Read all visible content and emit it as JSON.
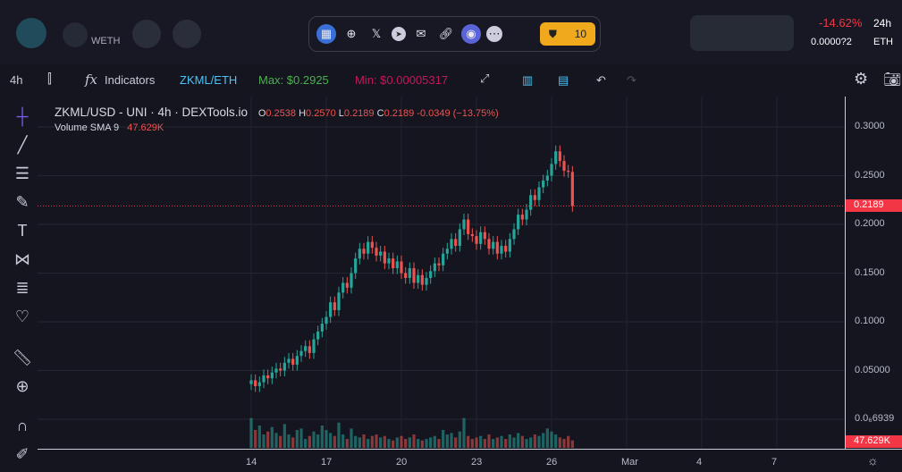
{
  "header": {
    "quote_label": "WETH",
    "change": "-14.62%",
    "change_period": "24h",
    "eth_price": "0.0000?2",
    "eth_unit": "ETH",
    "audit_count": "10"
  },
  "social_icons": [
    "dextools-icon",
    "globe-icon",
    "x-icon",
    "telegram-icon",
    "mail-icon",
    "link-icon",
    "coin-icon",
    "more-icon"
  ],
  "toolbar": {
    "interval": "4h",
    "indicators": "Indicators",
    "pair": "ZKML/ETH",
    "max": "Max: $0.2925",
    "min": "Min: $0.00005317"
  },
  "legend": {
    "title": "ZKML/USD - UNI · 4h · DEXTools.io",
    "o_label": "O",
    "o": "0.2538",
    "h_label": "H",
    "h": "0.2570",
    "l_label": "L",
    "l": "0.2189",
    "c_label": "C",
    "c": "0.2189",
    "change": "-0.0349 (−13.75%)",
    "volume_label": "Volume SMA 9",
    "volume_value": "47.629K"
  },
  "colors": {
    "up": "#26a69a",
    "down": "#ef5350",
    "accent": "#f23645",
    "pair": "#4fc3f7",
    "max": "#4caf50",
    "min": "#c2185b"
  },
  "chart_data": {
    "type": "candlestick",
    "price_ticks": [
      "0.3000",
      "0.2500",
      "0.2000",
      "0.1500",
      "0.1000",
      "0.05000",
      "0.0₆6939"
    ],
    "price_tick_values": [
      0.3,
      0.25,
      0.2,
      0.15,
      0.1,
      0.05,
      0
    ],
    "last_price": "0.2189",
    "last_volume_sma": "47.629K",
    "time_ticks": [
      "14",
      "17",
      "20",
      "23",
      "26",
      "Mar",
      "4",
      "7"
    ],
    "time_tick_days": [
      14,
      17,
      20,
      23,
      26,
      29,
      32,
      35
    ],
    "start_day": 14,
    "candles_per_day": 6,
    "closes": [
      0.04,
      0.034,
      0.038,
      0.045,
      0.042,
      0.048,
      0.052,
      0.05,
      0.058,
      0.062,
      0.056,
      0.065,
      0.07,
      0.075,
      0.068,
      0.082,
      0.09,
      0.098,
      0.105,
      0.12,
      0.112,
      0.13,
      0.14,
      0.135,
      0.15,
      0.165,
      0.175,
      0.17,
      0.182,
      0.176,
      0.168,
      0.172,
      0.16,
      0.165,
      0.155,
      0.162,
      0.15,
      0.145,
      0.155,
      0.14,
      0.148,
      0.138,
      0.145,
      0.152,
      0.16,
      0.158,
      0.17,
      0.175,
      0.185,
      0.178,
      0.195,
      0.205,
      0.19,
      0.188,
      0.18,
      0.192,
      0.185,
      0.175,
      0.182,
      0.17,
      0.178,
      0.172,
      0.185,
      0.195,
      0.21,
      0.205,
      0.215,
      0.23,
      0.225,
      0.238,
      0.245,
      0.25,
      0.262,
      0.275,
      0.265,
      0.255,
      0.2538,
      0.2189
    ],
    "volumes_k": [
      200,
      120,
      150,
      90,
      110,
      140,
      100,
      80,
      160,
      90,
      70,
      120,
      130,
      60,
      80,
      110,
      90,
      150,
      120,
      100,
      80,
      170,
      90,
      60,
      130,
      80,
      70,
      90,
      60,
      80,
      90,
      70,
      80,
      60,
      50,
      70,
      80,
      60,
      70,
      90,
      60,
      50,
      60,
      70,
      80,
      60,
      120,
      90,
      100,
      70,
      110,
      200,
      80,
      60,
      70,
      80,
      60,
      90,
      60,
      70,
      80,
      60,
      90,
      70,
      100,
      80,
      60,
      70,
      90,
      80,
      100,
      130,
      110,
      90,
      70,
      60,
      80,
      50
    ]
  }
}
